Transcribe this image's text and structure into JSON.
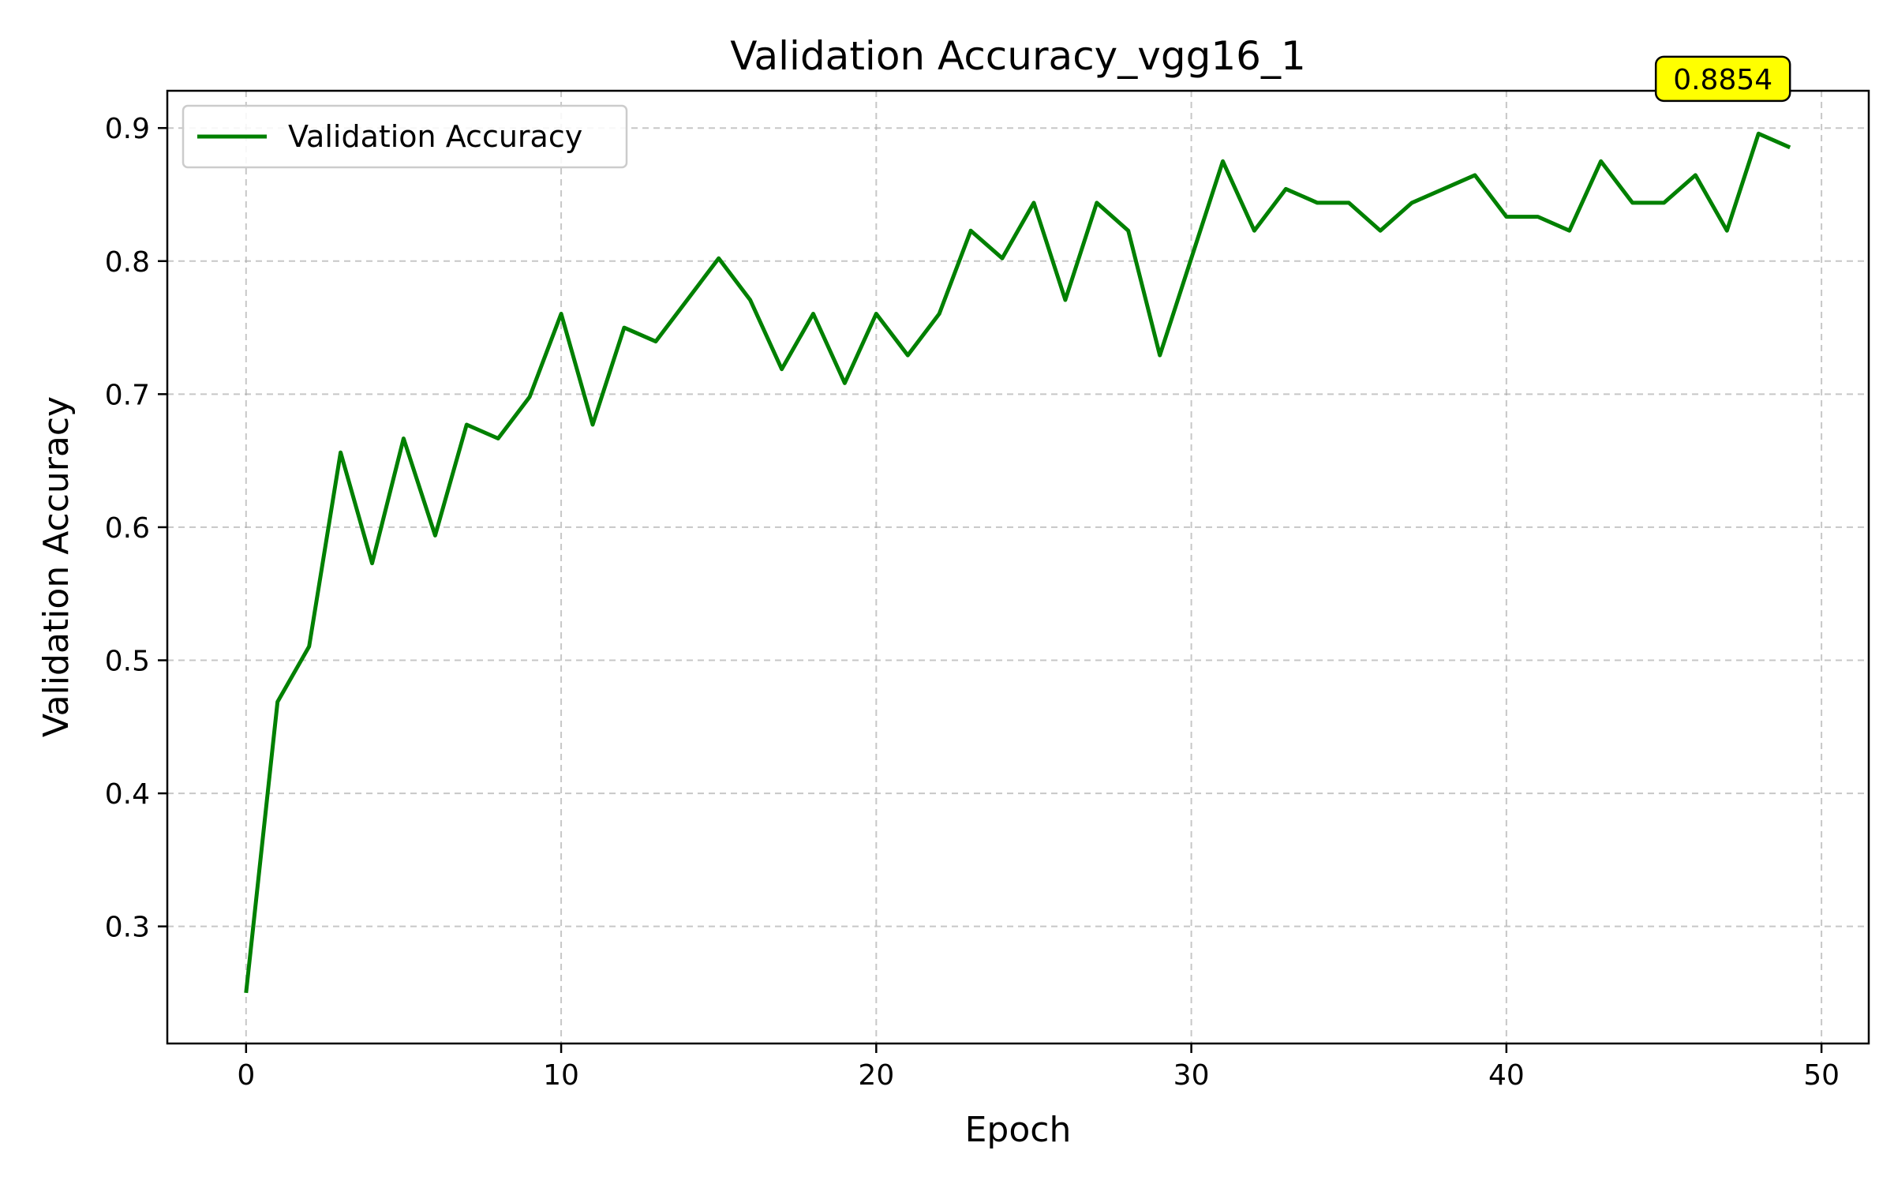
{
  "chart_data": {
    "type": "line",
    "title": "Validation Accuracy_vgg16_1",
    "xlabel": "Epoch",
    "ylabel": "Validation Accuracy",
    "xlim": [
      -2.5,
      51.5
    ],
    "ylim": [
      0.212,
      0.928
    ],
    "xticks": [
      0,
      10,
      20,
      30,
      40,
      50
    ],
    "yticks": [
      0.3,
      0.4,
      0.5,
      0.6,
      0.7,
      0.8,
      0.9
    ],
    "grid": true,
    "legend_position": "top-left",
    "series": [
      {
        "name": "Validation Accuracy",
        "color": "#008000",
        "x": [
          0,
          1,
          2,
          3,
          4,
          5,
          6,
          7,
          8,
          9,
          10,
          11,
          12,
          13,
          14,
          15,
          16,
          17,
          18,
          19,
          20,
          21,
          22,
          23,
          24,
          25,
          26,
          27,
          28,
          29,
          30,
          31,
          32,
          33,
          34,
          35,
          36,
          37,
          38,
          39,
          40,
          41,
          42,
          43,
          44,
          45,
          46,
          47,
          48,
          49
        ],
        "y": [
          0.25,
          0.4688,
          0.5104,
          0.6562,
          0.5729,
          0.6667,
          0.5938,
          0.6771,
          0.6667,
          0.6979,
          0.7604,
          0.6771,
          0.75,
          0.7396,
          0.7708,
          0.8021,
          0.7708,
          0.7188,
          0.7604,
          0.7083,
          0.7604,
          0.7292,
          0.7604,
          0.8229,
          0.8021,
          0.8438,
          0.7708,
          0.8438,
          0.8229,
          0.7292,
          0.8021,
          0.875,
          0.8229,
          0.8542,
          0.8438,
          0.8438,
          0.8229,
          0.8438,
          0.8542,
          0.8646,
          0.8333,
          0.8333,
          0.8229,
          0.875,
          0.8438,
          0.8438,
          0.8646,
          0.8229,
          0.8958,
          0.8854
        ]
      }
    ],
    "annotation": {
      "text": "0.8854",
      "x": 49,
      "y": 0.8854,
      "background": "#ffff00"
    }
  }
}
